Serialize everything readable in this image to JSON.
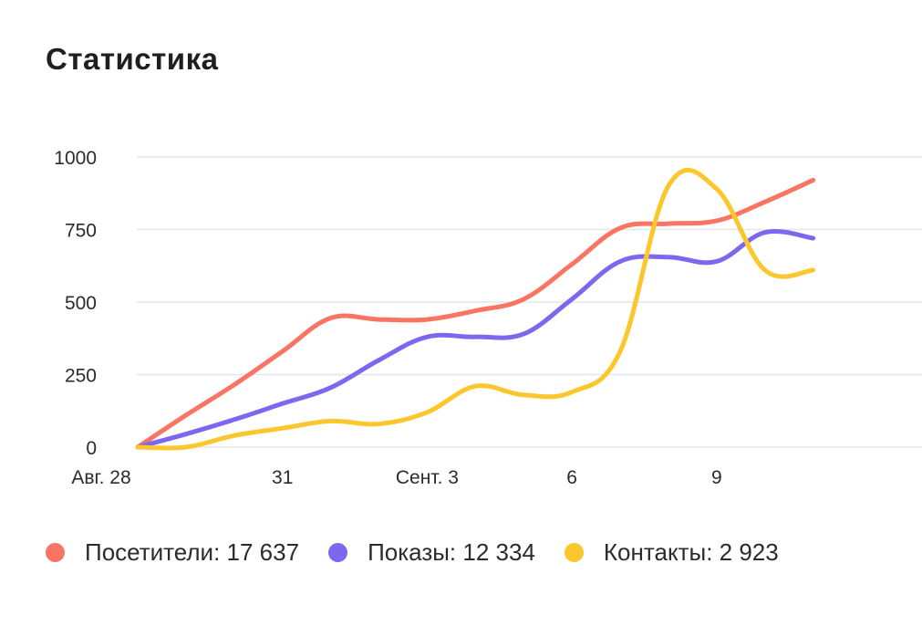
{
  "header": {
    "title": "Статистика"
  },
  "chart_data": {
    "type": "line",
    "x_labels": [
      "Авг. 28",
      "31",
      "Сент. 3",
      "6",
      "9"
    ],
    "yticks": [
      0,
      250,
      500,
      750,
      1000
    ],
    "ylim": [
      0,
      1000
    ],
    "grid": true,
    "legend_placement": "bottom-left",
    "series": [
      {
        "name": "Посетители",
        "total": "17 637",
        "color": "#f97463",
        "values": [
          0,
          110,
          215,
          330,
          445,
          440,
          440,
          470,
          510,
          630,
          755,
          770,
          780,
          845,
          920
        ]
      },
      {
        "name": "Показы",
        "total": "12 334",
        "color": "#7b68ee",
        "values": [
          0,
          45,
          95,
          150,
          205,
          300,
          380,
          380,
          390,
          510,
          640,
          655,
          640,
          740,
          720
        ]
      },
      {
        "name": "Контакты",
        "total": "2 923",
        "color": "#fcc62d",
        "values": [
          0,
          0,
          40,
          65,
          90,
          80,
          120,
          210,
          180,
          190,
          330,
          900,
          890,
          610,
          610
        ]
      }
    ]
  },
  "legend": {
    "items": [
      {
        "text": "Посетители: 17 637",
        "color": "#f97463"
      },
      {
        "text": "Показы: 12 334",
        "color": "#7b68ee"
      },
      {
        "text": "Контакты: 2 923",
        "color": "#fcc62d"
      }
    ]
  }
}
